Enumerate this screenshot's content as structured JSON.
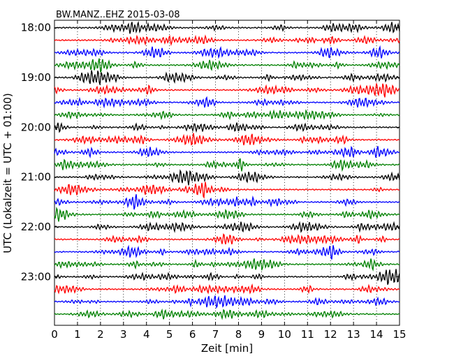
{
  "chart_data": {
    "type": "line",
    "title": "BW.MANZ..EHZ 2015-03-08",
    "xlabel": "Zeit  [min]",
    "ylabel": "UTC (Lokalzeit = UTC + 01:00)",
    "xlim": [
      0,
      15
    ],
    "x_ticks": [
      0,
      1,
      2,
      3,
      4,
      5,
      6,
      7,
      8,
      9,
      10,
      11,
      12,
      13,
      14,
      15
    ],
    "x_tick_labels": [
      "0",
      "1",
      "2",
      "3",
      "4",
      "5",
      "6",
      "7",
      "8",
      "9",
      "10",
      "11",
      "12",
      "13",
      "14",
      "15"
    ],
    "y_tick_labels": [
      "18:00",
      "19:00",
      "20:00",
      "21:00",
      "22:00",
      "23:00"
    ],
    "traces_per_hour": 4,
    "trace_start_times": [
      "18:00",
      "18:15",
      "18:30",
      "18:45",
      "19:00",
      "19:15",
      "19:30",
      "19:45",
      "20:00",
      "20:15",
      "20:30",
      "20:45",
      "21:00",
      "21:15",
      "21:30",
      "21:45",
      "22:00",
      "22:15",
      "22:30",
      "22:45",
      "23:00",
      "23:15",
      "23:30",
      "23:45"
    ],
    "trace_colors": [
      "#000000",
      "#ff0000",
      "#0000ff",
      "#008000"
    ],
    "vertical_grid": true,
    "grid_style": "dotted"
  }
}
